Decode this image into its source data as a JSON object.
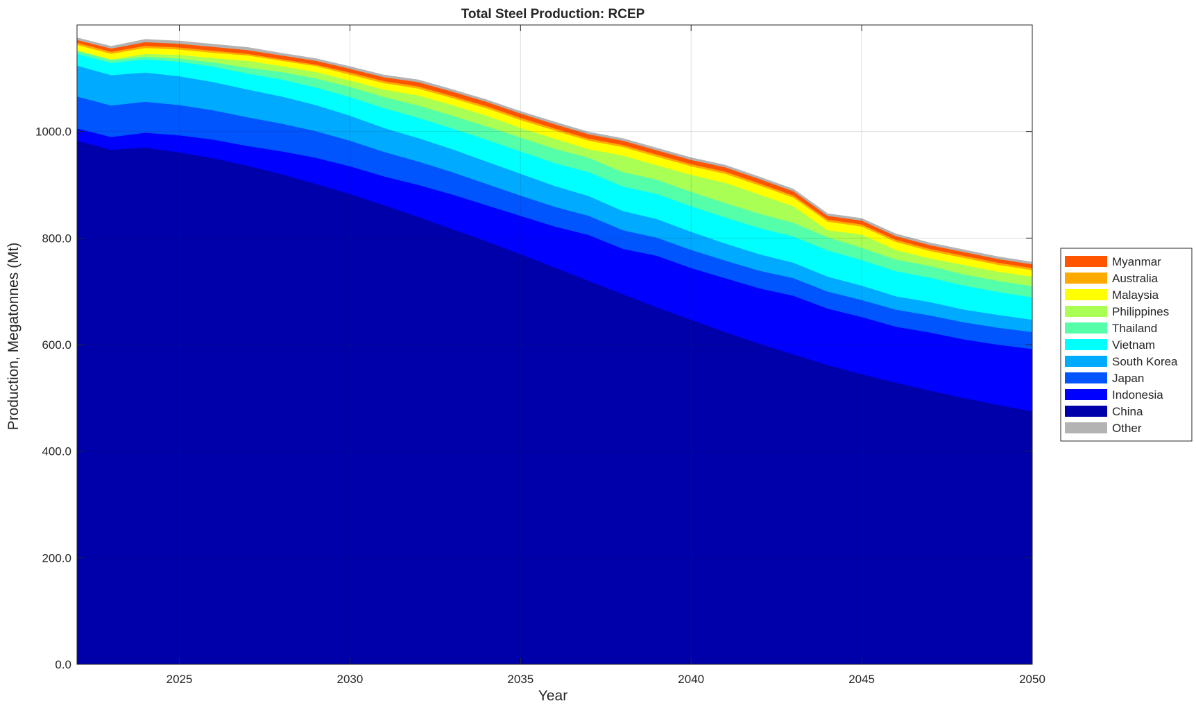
{
  "chart_data": {
    "type": "area",
    "stacked": true,
    "title": "Total Steel Production: RCEP",
    "xlabel": "Year",
    "ylabel": "Production, Megatonnes (Mt)",
    "xlim": [
      2022,
      2050
    ],
    "ylim": [
      0,
      1200
    ],
    "x": [
      2022,
      2023,
      2024,
      2025,
      2026,
      2027,
      2028,
      2029,
      2030,
      2031,
      2032,
      2033,
      2034,
      2035,
      2036,
      2037,
      2038,
      2039,
      2040,
      2041,
      2042,
      2043,
      2044,
      2045,
      2046,
      2047,
      2048,
      2049,
      2050
    ],
    "xticks": [
      2025,
      2030,
      2035,
      2040,
      2045,
      2050
    ],
    "xtick_labels": [
      "2025",
      "2030",
      "2035",
      "2040",
      "2045",
      "2050"
    ],
    "yticks": [
      0,
      200,
      400,
      600,
      800,
      1000
    ],
    "ytick_labels": [
      "0.0",
      "200.0",
      "400.0",
      "600.0",
      "800.0",
      "1000.0"
    ],
    "grid": true,
    "legend_position": "right",
    "legend_order": [
      "Myanmar",
      "Australia",
      "Malaysia",
      "Philippines",
      "Thailand",
      "Vietnam",
      "South Korea",
      "Japan",
      "Indonesia",
      "China",
      "Other"
    ],
    "series": [
      {
        "name": "China",
        "color": "#0000AA",
        "values": [
          983,
          966,
          970,
          961,
          950,
          936,
          920,
          902,
          883,
          862,
          840,
          817,
          794,
          770,
          745,
          720,
          695,
          670,
          647,
          624,
          602,
          582,
          562,
          545,
          529,
          514,
          500,
          487,
          475
        ]
      },
      {
        "name": "Indonesia",
        "color": "#0000FF",
        "values": [
          23,
          24,
          28,
          32,
          35,
          37,
          43,
          49,
          52,
          54,
          60,
          65,
          68,
          72,
          77,
          86,
          85,
          97,
          97,
          101,
          104,
          110,
          106,
          107,
          105,
          109,
          110,
          113,
          117
        ]
      },
      {
        "name": "Japan",
        "color": "#0055FF",
        "values": [
          60,
          59,
          58,
          57,
          55,
          54,
          52,
          50,
          48,
          46,
          44,
          42,
          40,
          38,
          37,
          36,
          35,
          34,
          34,
          33,
          33,
          33,
          32,
          32,
          32,
          32,
          32,
          32,
          32
        ]
      },
      {
        "name": "South Korea",
        "color": "#00AAFF",
        "values": [
          58,
          57,
          55,
          54,
          53,
          52,
          51,
          49,
          47,
          45,
          44,
          43,
          42,
          41,
          39,
          37,
          36,
          35,
          34,
          32,
          31,
          29,
          28,
          27,
          25,
          25,
          24,
          24,
          23
        ]
      },
      {
        "name": "Vietnam",
        "color": "#00FFFF",
        "values": [
          22,
          23,
          25,
          27,
          29,
          30,
          32,
          33,
          35,
          37,
          38,
          39,
          41,
          42,
          43,
          45,
          46,
          47,
          48,
          49,
          49,
          49,
          49,
          48,
          47,
          46,
          45,
          43,
          42
        ]
      },
      {
        "name": "Thailand",
        "color": "#55FFAA",
        "values": [
          5,
          5,
          5,
          6,
          8,
          11,
          14,
          17,
          19,
          21,
          23,
          24,
          25,
          26,
          27,
          27,
          27,
          27,
          27,
          27,
          27,
          26,
          25,
          23,
          22,
          22,
          21,
          21,
          21
        ]
      },
      {
        "name": "Philippines",
        "color": "#AAFF55",
        "values": [
          2,
          2,
          5,
          7,
          8,
          13,
          11,
          12,
          12,
          14,
          19,
          20,
          20,
          18,
          19,
          16,
          31,
          27,
          32,
          38,
          36,
          31,
          13,
          25,
          18,
          14,
          18,
          17,
          18
        ]
      },
      {
        "name": "Malaysia",
        "color": "#FFFF00",
        "values": [
          10,
          10,
          11,
          10,
          10,
          10,
          10,
          11,
          11,
          12,
          13,
          13,
          14,
          15,
          15,
          16,
          16,
          16,
          16,
          17,
          17,
          16,
          16,
          15,
          15,
          14,
          13,
          13,
          12
        ]
      },
      {
        "name": "Australia",
        "color": "#FFAA00",
        "values": [
          4,
          4,
          4,
          4,
          4,
          3,
          3,
          3,
          4,
          4,
          4,
          4,
          4,
          4,
          4,
          4,
          4,
          4,
          4,
          4,
          4,
          4,
          4,
          4,
          4,
          4,
          4,
          4,
          4
        ]
      },
      {
        "name": "Myanmar",
        "color": "#FF5500",
        "values": [
          5,
          6,
          7,
          7,
          7,
          7,
          7,
          7,
          7,
          7,
          8,
          8,
          8,
          8,
          8,
          8,
          8,
          8,
          8,
          8,
          8,
          8,
          7,
          7,
          7,
          7,
          7,
          7,
          7
        ]
      },
      {
        "name": "Other",
        "color": "#B3B3B3",
        "values": [
          4,
          4,
          5,
          5,
          5,
          5,
          4,
          4,
          4,
          4,
          4,
          4,
          4,
          4,
          4,
          4,
          4,
          4,
          4,
          4,
          4,
          4,
          4,
          4,
          4,
          4,
          4,
          4,
          4
        ]
      }
    ]
  }
}
